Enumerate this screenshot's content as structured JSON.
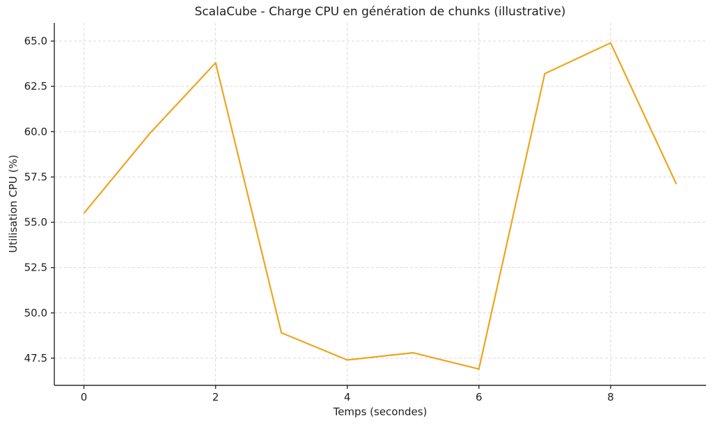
{
  "chart_data": {
    "type": "line",
    "title": "ScalaCube - Charge CPU en génération de chunks (illustrative)",
    "xlabel": "Temps (secondes)",
    "ylabel": "Utilisation CPU (%)",
    "x": [
      0,
      1,
      2,
      3,
      4,
      5,
      6,
      7,
      8,
      9
    ],
    "series": [
      {
        "name": "Utilisation CPU",
        "values": [
          55.5,
          59.9,
          63.8,
          48.9,
          47.4,
          47.8,
          46.9,
          63.2,
          64.9,
          57.1
        ],
        "color": "#EDA51B"
      }
    ],
    "xlim": [
      -0.45,
      9.45
    ],
    "ylim": [
      46.0,
      66.0
    ],
    "xtick_labels": [
      "0",
      "2",
      "4",
      "6",
      "8"
    ],
    "ytick_labels": [
      "47.5",
      "50.0",
      "52.5",
      "55.0",
      "57.5",
      "60.0",
      "62.5",
      "65.0"
    ],
    "grid": true,
    "grid_style": "dashed",
    "legend_position": "none"
  },
  "style_colors": {
    "line": "#EDA51B",
    "grid": "#d9d9d9",
    "spine": "#2b2b2b",
    "tick_text": "#1f1f1f",
    "background": "#ffffff"
  }
}
